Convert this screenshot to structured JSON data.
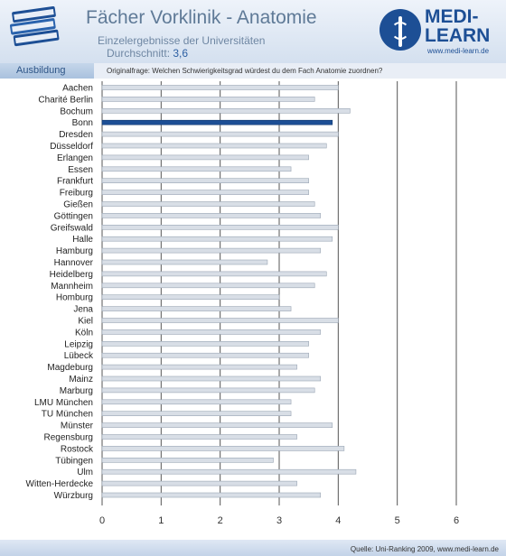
{
  "header": {
    "title": "Fächer Vorklinik - Anatomie",
    "subtitle": "Einzelergebnisse der Universitäten",
    "average_label": "Durchschnitt:",
    "average_value": "3,6"
  },
  "logo": {
    "name": "MEDI-LEARN",
    "url": "www.medi-learn.de"
  },
  "category": "Ausbildung",
  "question": "Originalfrage: Welchen Schwierigkeitsgrad würdest du dem Fach Anatomie zuordnen?",
  "source": "Quelle: Uni-Ranking 2009, www.medi-learn.de",
  "colors": {
    "bar": "#d8dee6",
    "bar_highlight": "#1d4f95",
    "grid": "#555555"
  },
  "chart_data": {
    "type": "bar",
    "orientation": "horizontal",
    "highlight": "Bonn",
    "xlim": [
      0,
      6
    ],
    "xticks": [
      0,
      1,
      2,
      3,
      4,
      5,
      6
    ],
    "categories": [
      "Aachen",
      "Charité Berlin",
      "Bochum",
      "Bonn",
      "Dresden",
      "Düsseldorf",
      "Erlangen",
      "Essen",
      "Frankfurt",
      "Freiburg",
      "Gießen",
      "Göttingen",
      "Greifswald",
      "Halle",
      "Hamburg",
      "Hannover",
      "Heidelberg",
      "Mannheim",
      "Homburg",
      "Jena",
      "Kiel",
      "Köln",
      "Leipzig",
      "Lübeck",
      "Magdeburg",
      "Mainz",
      "Marburg",
      "LMU München",
      "TU München",
      "Münster",
      "Regensburg",
      "Rostock",
      "Tübingen",
      "Ulm",
      "Witten-Herdecke",
      "Würzburg"
    ],
    "values": [
      4.0,
      3.6,
      4.2,
      3.9,
      4.0,
      3.8,
      3.5,
      3.2,
      3.5,
      3.5,
      3.6,
      3.7,
      4.0,
      3.9,
      3.7,
      2.8,
      3.8,
      3.6,
      3.0,
      3.2,
      4.0,
      3.7,
      3.5,
      3.5,
      3.3,
      3.7,
      3.6,
      3.2,
      3.2,
      3.9,
      3.3,
      4.1,
      2.9,
      4.3,
      3.3,
      3.7
    ]
  }
}
